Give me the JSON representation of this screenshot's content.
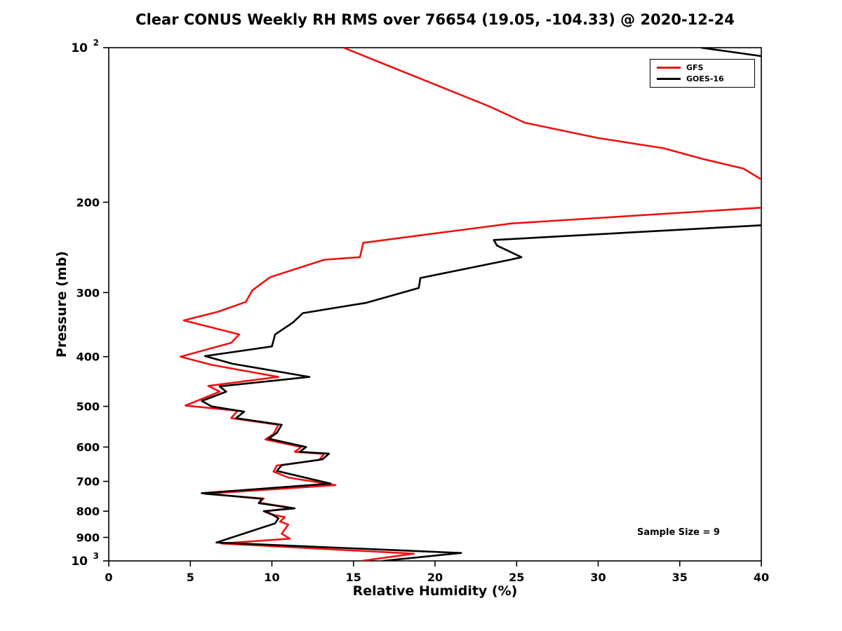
{
  "page": {
    "background": "#ffffff"
  },
  "chart_data": {
    "type": "line",
    "title": "Clear CONUS Weekly RH RMS over 76654 (19.05, -104.33) @ 2020-12-24",
    "xlabel": "Relative Humidity (%)",
    "ylabel": "Pressure (mb)",
    "xlim": [
      0,
      40
    ],
    "ylim_pressure_mb": [
      100,
      1000
    ],
    "y_scale": "log10-inverted",
    "grid": false,
    "legend_position": "top-right",
    "annotation": "Sample Size = 9",
    "x_ticks": [
      0,
      5,
      10,
      15,
      20,
      25,
      30,
      35,
      40
    ],
    "y_ticks": [
      {
        "value": 100,
        "label": "10^2"
      },
      {
        "value": 200,
        "label": "200"
      },
      {
        "value": 300,
        "label": "300"
      },
      {
        "value": 400,
        "label": "400"
      },
      {
        "value": 500,
        "label": "500"
      },
      {
        "value": 600,
        "label": "600"
      },
      {
        "value": 700,
        "label": "700"
      },
      {
        "value": 800,
        "label": "800"
      },
      {
        "value": 900,
        "label": "900"
      },
      {
        "value": 1000,
        "label": "10^3"
      }
    ],
    "series": [
      {
        "name": "GFS",
        "color": "#ee1111",
        "points_format": [
          "pressure_mb",
          "rh_rms_percent"
        ],
        "points": [
          [
            100,
            14.4
          ],
          [
            108,
            17.0
          ],
          [
            118,
            20.0
          ],
          [
            130,
            23.3
          ],
          [
            140,
            25.5
          ],
          [
            150,
            30.0
          ],
          [
            157,
            34.0
          ],
          [
            165,
            36.5
          ],
          [
            172,
            38.9
          ],
          [
            183,
            40.3
          ],
          [
            193,
            42.5
          ],
          [
            202,
            41.0
          ],
          [
            205,
            40.0
          ],
          [
            220,
            24.7
          ],
          [
            240,
            15.6
          ],
          [
            256,
            15.4
          ],
          [
            259,
            13.2
          ],
          [
            280,
            9.9
          ],
          [
            297,
            8.8
          ],
          [
            313,
            8.4
          ],
          [
            327,
            6.7
          ],
          [
            340,
            4.6
          ],
          [
            362,
            8.0
          ],
          [
            376,
            7.5
          ],
          [
            400,
            4.4
          ],
          [
            415,
            6.3
          ],
          [
            438,
            10.4
          ],
          [
            456,
            6.1
          ],
          [
            468,
            6.8
          ],
          [
            498,
            4.7
          ],
          [
            510,
            7.9
          ],
          [
            527,
            7.5
          ],
          [
            543,
            10.4
          ],
          [
            566,
            10.1
          ],
          [
            580,
            9.6
          ],
          [
            600,
            11.8
          ],
          [
            613,
            11.4
          ],
          [
            619,
            13.2
          ],
          [
            636,
            12.9
          ],
          [
            652,
            10.3
          ],
          [
            670,
            10.1
          ],
          [
            688,
            11.0
          ],
          [
            712,
            13.9
          ],
          [
            740,
            5.9
          ],
          [
            756,
            9.5
          ],
          [
            770,
            9.2
          ],
          [
            788,
            11.2
          ],
          [
            800,
            9.7
          ],
          [
            812,
            10.0
          ],
          [
            822,
            10.8
          ],
          [
            838,
            10.5
          ],
          [
            850,
            11.0
          ],
          [
            885,
            10.6
          ],
          [
            905,
            11.1
          ],
          [
            925,
            6.9
          ],
          [
            968,
            18.7
          ],
          [
            1000,
            15.5
          ]
        ]
      },
      {
        "name": "GOES-16",
        "color": "#000000",
        "points_format": [
          "pressure_mb",
          "rh_rms_percent"
        ],
        "points": [
          [
            100,
            36.3
          ],
          [
            106,
            42.0
          ],
          [
            220,
            42.0
          ],
          [
            237,
            23.6
          ],
          [
            243,
            23.8
          ],
          [
            256,
            25.3
          ],
          [
            259,
            24.6
          ],
          [
            281,
            19.1
          ],
          [
            294,
            19.0
          ],
          [
            314,
            15.8
          ],
          [
            329,
            11.9
          ],
          [
            343,
            11.3
          ],
          [
            362,
            10.2
          ],
          [
            382,
            10.0
          ],
          [
            399,
            5.9
          ],
          [
            413,
            7.6
          ],
          [
            438,
            12.3
          ],
          [
            457,
            6.8
          ],
          [
            468,
            7.2
          ],
          [
            488,
            5.7
          ],
          [
            500,
            6.3
          ],
          [
            512,
            8.3
          ],
          [
            527,
            7.8
          ],
          [
            543,
            10.6
          ],
          [
            563,
            10.3
          ],
          [
            578,
            9.8
          ],
          [
            600,
            12.1
          ],
          [
            613,
            11.7
          ],
          [
            618,
            13.5
          ],
          [
            634,
            13.1
          ],
          [
            651,
            10.6
          ],
          [
            668,
            10.3
          ],
          [
            707,
            13.6
          ],
          [
            738,
            5.7
          ],
          [
            757,
            9.4
          ],
          [
            772,
            9.2
          ],
          [
            790,
            11.4
          ],
          [
            800,
            9.5
          ],
          [
            812,
            10.0
          ],
          [
            826,
            10.4
          ],
          [
            845,
            10.2
          ],
          [
            921,
            6.6
          ],
          [
            965,
            21.6
          ],
          [
            1000,
            16.8
          ]
        ]
      }
    ]
  }
}
